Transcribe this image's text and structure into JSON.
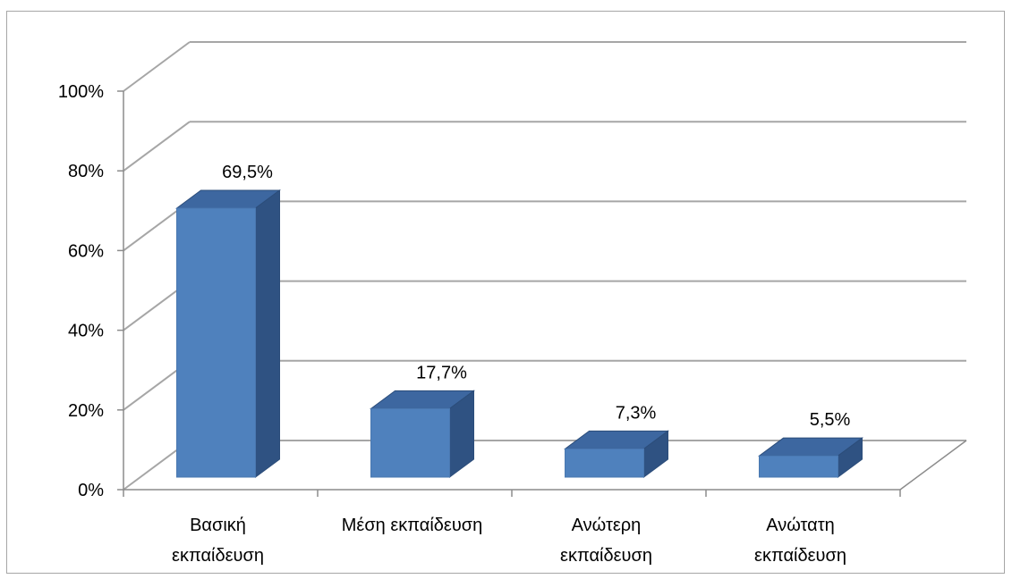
{
  "chart_data": {
    "type": "bar",
    "categories": [
      [
        "Βασική",
        "εκπαίδευση"
      ],
      [
        "Μέση εκπαίδευση"
      ],
      [
        "Ανώτερη",
        "εκπαίδευση"
      ],
      [
        "Ανώτατη",
        "εκπαίδευση"
      ]
    ],
    "values": [
      69.5,
      17.7,
      7.3,
      5.5
    ],
    "data_labels": [
      "69,5%",
      "17,7%",
      "7,3%",
      "5,5%"
    ],
    "y_ticks": [
      "0%",
      "20%",
      "40%",
      "60%",
      "80%",
      "100%"
    ],
    "ylim": [
      0,
      100
    ],
    "grid": true,
    "style": "3d-column",
    "colors": {
      "bar_front": "#4f81bd",
      "bar_top": "#3d67a0",
      "bar_side": "#2f5282",
      "gridline": "#a6a6a6",
      "axis": "#8c8c8c"
    }
  }
}
